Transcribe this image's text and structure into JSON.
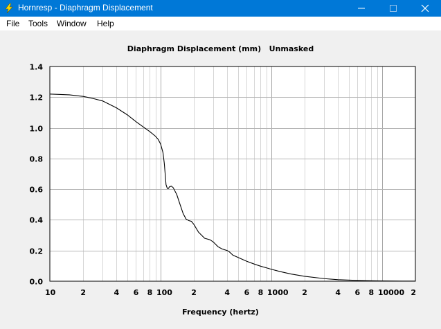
{
  "window": {
    "title": "Hornresp - Diaphragm Displacement",
    "minimize_glyph": "—",
    "maximize_glyph": "☐",
    "close_glyph": "✕"
  },
  "menu": [
    {
      "label": "File"
    },
    {
      "label": "Tools"
    },
    {
      "label": "Window"
    },
    {
      "label": "Help"
    }
  ],
  "chart_data": {
    "type": "line",
    "title": "Diaphragm Displacement (mm)   Unmasked",
    "xlabel": "Frequency (hertz)",
    "ylabel": "",
    "x_scale": "log",
    "xlim": [
      10,
      20000
    ],
    "ylim": [
      0,
      1.4
    ],
    "grid": true,
    "y_ticks": [
      "0.0",
      "0.2",
      "0.4",
      "0.6",
      "0.8",
      "1.0",
      "1.2",
      "1.4"
    ],
    "x_ticks": [
      {
        "value": 10,
        "label": "10"
      },
      {
        "value": 20,
        "label": "2"
      },
      {
        "value": 40,
        "label": "4"
      },
      {
        "value": 60,
        "label": "6"
      },
      {
        "value": 80,
        "label": "8"
      },
      {
        "value": 100,
        "label": "100"
      },
      {
        "value": 200,
        "label": "2"
      },
      {
        "value": 400,
        "label": "4"
      },
      {
        "value": 600,
        "label": "6"
      },
      {
        "value": 800,
        "label": "8"
      },
      {
        "value": 1000,
        "label": "1000"
      },
      {
        "value": 2000,
        "label": "2"
      },
      {
        "value": 4000,
        "label": "4"
      },
      {
        "value": 6000,
        "label": "6"
      },
      {
        "value": 8000,
        "label": "8"
      },
      {
        "value": 10000,
        "label": "10000"
      },
      {
        "value": 20000,
        "label": "2"
      }
    ],
    "series": [
      {
        "color": "#000000",
        "x": [
          10,
          15,
          20,
          25,
          30,
          40,
          50,
          60,
          70,
          80,
          90,
          95,
          100,
          105,
          108,
          110,
          112,
          115,
          118,
          120,
          125,
          130,
          140,
          150,
          160,
          170,
          180,
          190,
          200,
          220,
          250,
          280,
          300,
          330,
          360,
          400,
          420,
          450,
          500,
          600,
          700,
          800,
          1000,
          1200,
          1500,
          2000,
          3000,
          4000,
          6000,
          8000,
          10000,
          15000,
          20000
        ],
        "y": [
          1.22,
          1.215,
          1.205,
          1.19,
          1.175,
          1.13,
          1.085,
          1.04,
          1.005,
          0.975,
          0.945,
          0.925,
          0.895,
          0.84,
          0.77,
          0.7,
          0.63,
          0.605,
          0.605,
          0.615,
          0.62,
          0.61,
          0.565,
          0.5,
          0.44,
          0.405,
          0.395,
          0.39,
          0.37,
          0.32,
          0.28,
          0.27,
          0.255,
          0.225,
          0.21,
          0.2,
          0.19,
          0.17,
          0.155,
          0.13,
          0.112,
          0.098,
          0.078,
          0.063,
          0.047,
          0.032,
          0.017,
          0.01,
          0.005,
          0.003,
          0.002,
          0.001,
          0.001
        ]
      }
    ]
  }
}
